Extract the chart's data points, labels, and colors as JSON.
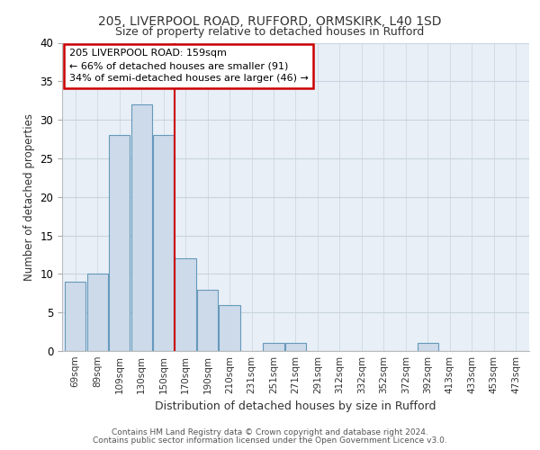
{
  "title1": "205, LIVERPOOL ROAD, RUFFORD, ORMSKIRK, L40 1SD",
  "title2": "Size of property relative to detached houses in Rufford",
  "xlabel": "Distribution of detached houses by size in Rufford",
  "ylabel": "Number of detached properties",
  "categories": [
    "69sqm",
    "89sqm",
    "109sqm",
    "130sqm",
    "150sqm",
    "170sqm",
    "190sqm",
    "210sqm",
    "231sqm",
    "251sqm",
    "271sqm",
    "291sqm",
    "312sqm",
    "332sqm",
    "352sqm",
    "372sqm",
    "392sqm",
    "413sqm",
    "433sqm",
    "453sqm",
    "473sqm"
  ],
  "values": [
    9,
    10,
    28,
    32,
    28,
    12,
    8,
    6,
    0,
    1,
    1,
    0,
    0,
    0,
    0,
    0,
    1,
    0,
    0,
    0,
    0
  ],
  "bar_color": "#ccdaea",
  "bar_edge_color": "#6699bb",
  "property_line_x": 4.5,
  "annotation_text": "205 LIVERPOOL ROAD: 159sqm\n← 66% of detached houses are smaller (91)\n34% of semi-detached houses are larger (46) →",
  "annotation_box_color": "#ffffff",
  "annotation_box_edge_color": "#cc0000",
  "vline_color": "#cc0000",
  "ylim": [
    0,
    40
  ],
  "yticks": [
    0,
    5,
    10,
    15,
    20,
    25,
    30,
    35,
    40
  ],
  "footer1": "Contains HM Land Registry data © Crown copyright and database right 2024.",
  "footer2": "Contains public sector information licensed under the Open Government Licence v3.0.",
  "grid_color": "#c8d4e0",
  "background_color": "#e8eff6"
}
